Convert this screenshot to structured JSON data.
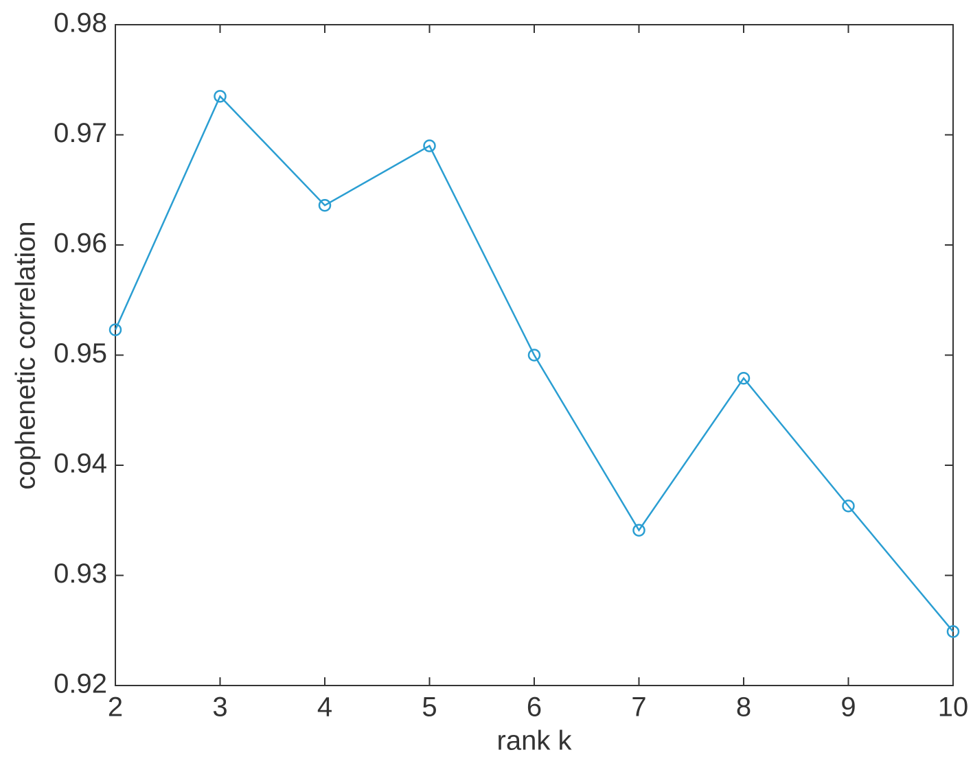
{
  "chart_data": {
    "type": "line",
    "xlabel": "rank k",
    "ylabel": "cophenetic correlation",
    "x": [
      2,
      3,
      4,
      5,
      6,
      7,
      8,
      9,
      10
    ],
    "series": [
      {
        "name": "cophenetic correlation",
        "color": "#2a9ed2",
        "marker": "circle",
        "values": [
          0.9523,
          0.9735,
          0.9636,
          0.969,
          0.95,
          0.9341,
          0.9479,
          0.9363,
          0.9249
        ]
      }
    ],
    "xlim": [
      2,
      10
    ],
    "xticks": [
      2,
      3,
      4,
      5,
      6,
      7,
      8,
      9,
      10
    ],
    "ylim": [
      0.92,
      0.98
    ],
    "yticks": [
      0.92,
      0.93,
      0.94,
      0.95,
      0.96,
      0.97,
      0.98
    ],
    "grid": false,
    "box": true
  }
}
